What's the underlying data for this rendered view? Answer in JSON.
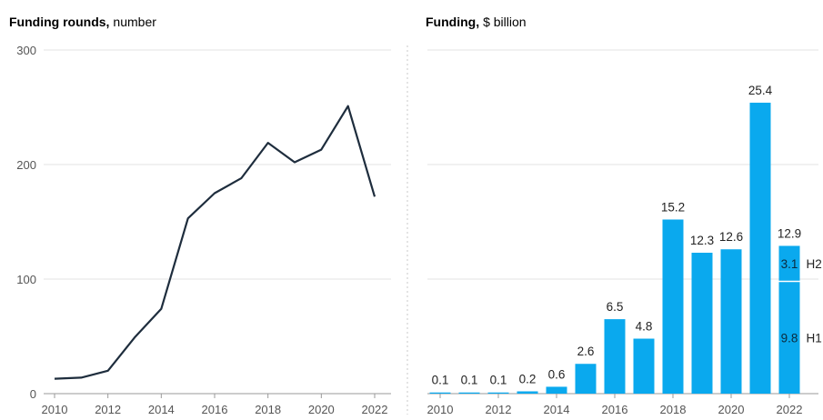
{
  "chart_data": [
    {
      "type": "line",
      "title": "Funding rounds,",
      "unit": "number",
      "x": [
        2010,
        2011,
        2012,
        2013,
        2014,
        2015,
        2016,
        2017,
        2018,
        2019,
        2020,
        2021,
        2022
      ],
      "series": [
        {
          "values": [
            13,
            14,
            20,
            49,
            74,
            153,
            175,
            188,
            219,
            202,
            213,
            251,
            172
          ]
        }
      ],
      "xticks": [
        "2010",
        "2012",
        "2014",
        "2016",
        "2018",
        "2020",
        "2022"
      ],
      "yticks": [
        "0",
        "100",
        "200",
        "300"
      ],
      "ylim": [
        0,
        300
      ],
      "grid": true,
      "color": "#1e2d3d"
    },
    {
      "type": "bar",
      "title": "Funding,",
      "unit": "$ billion",
      "categories": [
        2010,
        2011,
        2012,
        2013,
        2014,
        2015,
        2016,
        2017,
        2018,
        2019,
        2020,
        2021,
        2022
      ],
      "values": [
        0.1,
        0.1,
        0.1,
        0.2,
        0.6,
        2.6,
        6.5,
        4.8,
        15.2,
        12.3,
        12.6,
        25.4,
        12.9
      ],
      "labels": [
        "0.1",
        "0.1",
        "0.1",
        "0.2",
        "0.6",
        "2.6",
        "6.5",
        "4.8",
        "15.2",
        "12.3",
        "12.6",
        "25.4",
        "12.9"
      ],
      "last_split": [
        {
          "name": "H1",
          "value": 9.8,
          "label": "9.8"
        },
        {
          "name": "H2",
          "value": 3.1,
          "label": "3.1"
        }
      ],
      "xticks": [
        "2010",
        "2012",
        "2014",
        "2016",
        "2018",
        "2020",
        "2022"
      ],
      "ylim": [
        0,
        30
      ],
      "grid": true,
      "color": "#0aa9ee"
    }
  ]
}
